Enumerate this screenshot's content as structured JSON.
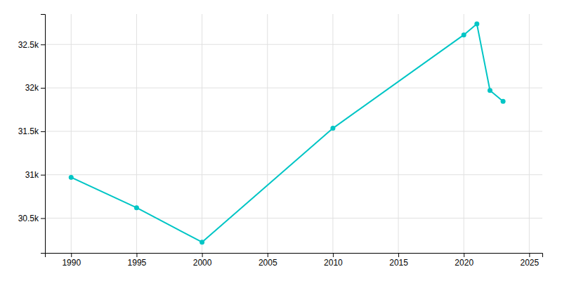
{
  "chart_data": {
    "type": "line",
    "x": [
      1990,
      1995,
      2000,
      2010,
      2020,
      2021,
      2022,
      2023
    ],
    "values": [
      30970,
      30620,
      30224,
      31535,
      32610,
      32736,
      31970,
      31845
    ],
    "color": "#00C5C5",
    "marker": "circle",
    "xlim": [
      1988,
      2026
    ],
    "ylim": [
      30100,
      32850
    ],
    "xticks": [
      1990,
      1995,
      2000,
      2005,
      2010,
      2015,
      2020,
      2025
    ],
    "yticks": [
      {
        "value": 30500,
        "label": "30.5k"
      },
      {
        "value": 31000,
        "label": "31k"
      },
      {
        "value": 31500,
        "label": "31.5k"
      },
      {
        "value": 32000,
        "label": "32k"
      },
      {
        "value": 32500,
        "label": "32.5k"
      }
    ],
    "grid": true
  }
}
